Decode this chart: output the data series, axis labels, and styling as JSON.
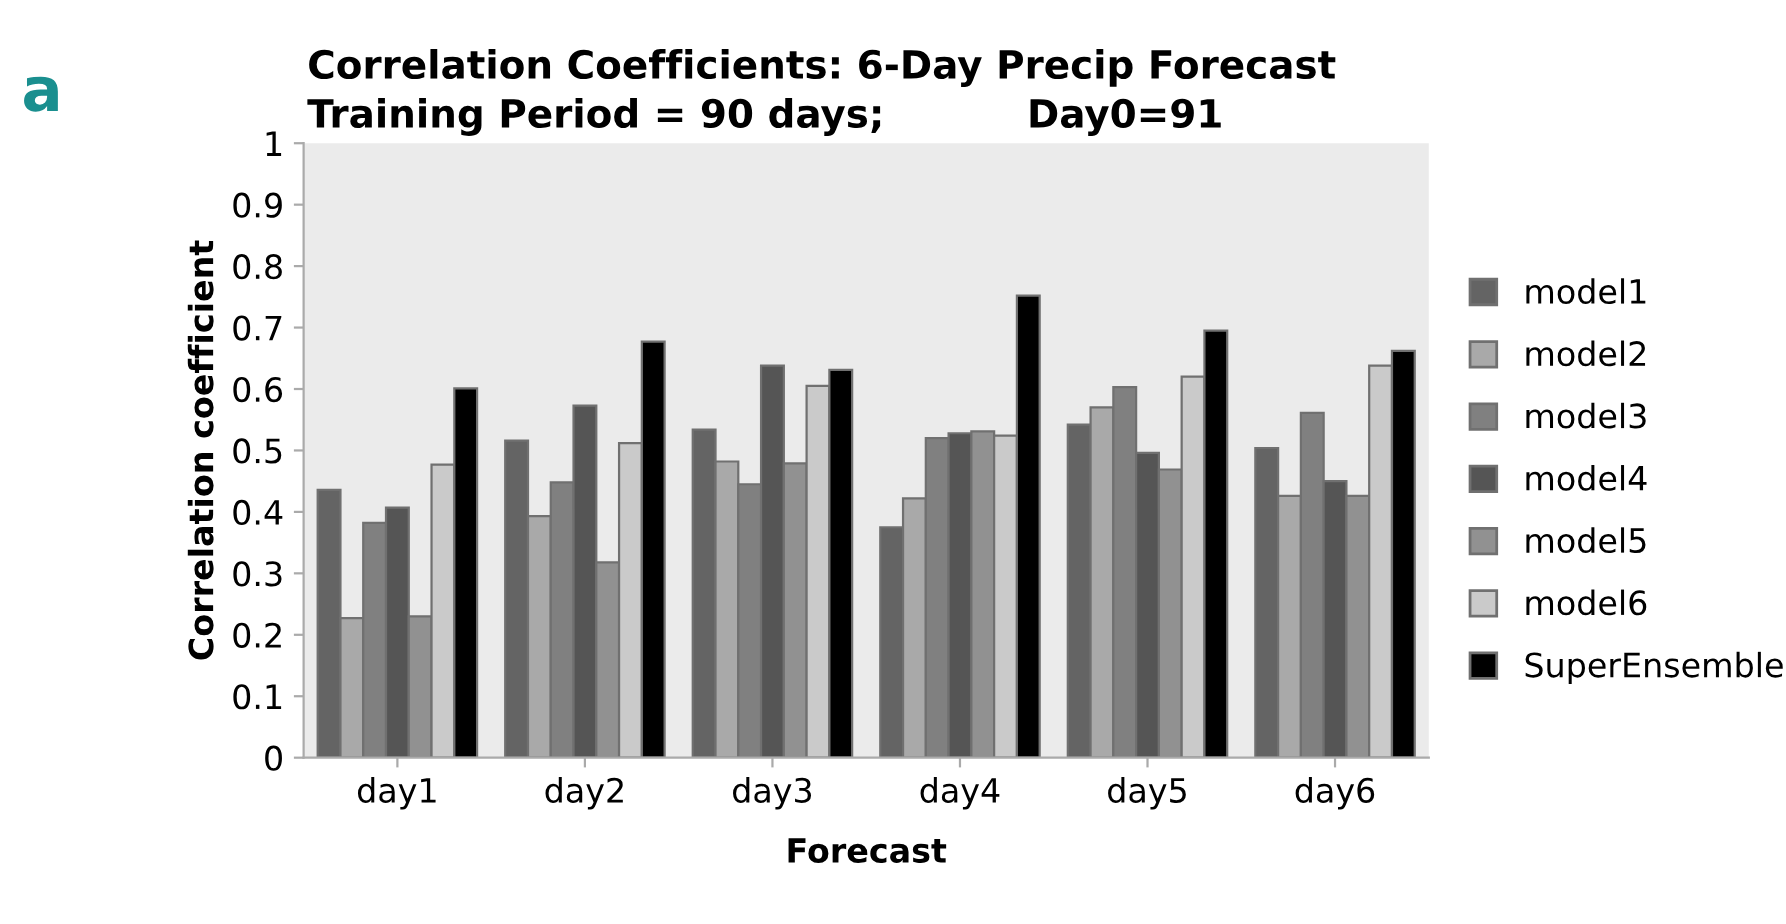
{
  "chart_data": {
    "type": "bar",
    "title": "Correlation Coefficients: 6-Day Precip Forecast",
    "subtitle": "Training Period = 90 days;",
    "annotations": [
      "Day0=91",
      "a"
    ],
    "xlabel": "Forecast",
    "ylabel": "Correlation coefficient",
    "categories": [
      "day1",
      "day2",
      "day3",
      "day4",
      "day5",
      "day6"
    ],
    "series": [
      {
        "name": "model1",
        "color": "#646464",
        "values": [
          0.436,
          0.516,
          0.534,
          0.375,
          0.542,
          0.504
        ]
      },
      {
        "name": "model2",
        "color": "#a9a9a9",
        "values": [
          0.227,
          0.393,
          0.482,
          0.422,
          0.57,
          0.426
        ]
      },
      {
        "name": "model3",
        "color": "#808080",
        "values": [
          0.382,
          0.448,
          0.445,
          0.52,
          0.603,
          0.561
        ]
      },
      {
        "name": "model4",
        "color": "#555555",
        "values": [
          0.407,
          0.573,
          0.638,
          0.528,
          0.496,
          0.45
        ]
      },
      {
        "name": "model5",
        "color": "#919191",
        "values": [
          0.23,
          0.318,
          0.479,
          0.531,
          0.469,
          0.426
        ]
      },
      {
        "name": "model6",
        "color": "#cacaca",
        "values": [
          0.477,
          0.512,
          0.605,
          0.524,
          0.62,
          0.638
        ]
      },
      {
        "name": "SuperEnsemble",
        "color": "#000000",
        "values": [
          0.601,
          0.677,
          0.631,
          0.752,
          0.695,
          0.662
        ]
      }
    ],
    "ylim": [
      0,
      1
    ],
    "yticks": [
      0,
      0.1,
      0.2,
      0.3,
      0.4,
      0.5,
      0.6,
      0.7,
      0.8,
      0.9,
      1
    ],
    "grid": false,
    "legend": "right"
  }
}
